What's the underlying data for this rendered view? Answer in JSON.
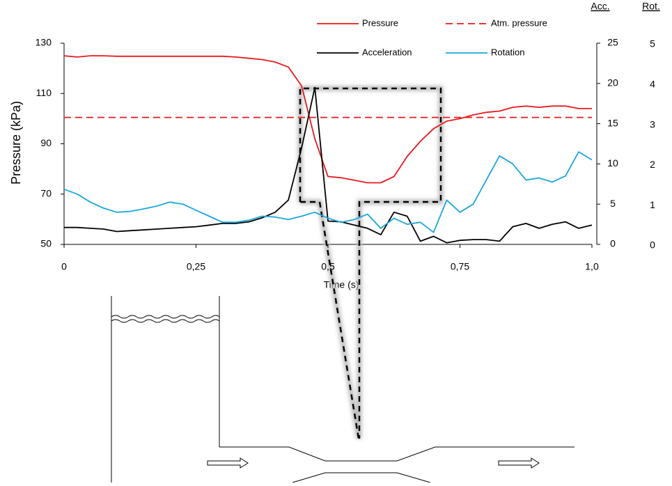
{
  "chart_data": {
    "type": "line",
    "x_label": "Time (s)",
    "y_label": "Pressure (kPa)",
    "y2_label": "Acc.",
    "y3_label": "Rot.",
    "x": [
      0,
      0.025,
      0.05,
      0.075,
      0.1,
      0.125,
      0.15,
      0.175,
      0.2,
      0.225,
      0.25,
      0.275,
      0.3,
      0.325,
      0.35,
      0.375,
      0.4,
      0.425,
      0.45,
      0.475,
      0.5,
      0.525,
      0.55,
      0.575,
      0.6,
      0.625,
      0.65,
      0.675,
      0.7,
      0.725,
      0.75,
      0.775,
      0.8,
      0.825,
      0.85,
      0.875,
      0.9,
      0.925,
      0.95,
      0.975,
      1.0
    ],
    "xlim": [
      0,
      1.0
    ],
    "xticks": [
      0,
      {
        "value": 0.25,
        "label": "0,25"
      },
      {
        "value": 0.5,
        "label": "0,5"
      },
      {
        "value": 0.75,
        "label": "0,75"
      },
      {
        "value": 1.0,
        "label": "1,0"
      }
    ],
    "ylim": [
      50,
      130
    ],
    "yticks": [
      50,
      70,
      90,
      110,
      130
    ],
    "y2lim": [
      0,
      25
    ],
    "y2ticks": [
      0,
      5,
      10,
      15,
      20,
      25
    ],
    "y3lim": [
      0,
      5
    ],
    "y3ticks": [
      0,
      1,
      2,
      3,
      4,
      5
    ],
    "series": [
      {
        "name": "Pressure",
        "color": "#e8191c",
        "values": [
          125,
          124.5,
          125,
          125,
          124.8,
          124.8,
          124.8,
          124.8,
          124.8,
          124.8,
          124.8,
          124.8,
          124.8,
          124.5,
          124,
          123.5,
          122.5,
          120.5,
          113,
          92,
          77,
          76.5,
          75.5,
          74.5,
          74.5,
          77,
          85,
          91,
          96,
          99,
          100,
          101.5,
          102.5,
          103,
          104.5,
          105,
          104.5,
          105,
          105,
          104,
          104
        ]
      },
      {
        "name": "Atm. pressure",
        "color": "#e8191c",
        "dashed": true,
        "values": [
          100.5,
          100.5,
          100.5,
          100.5,
          100.5,
          100.5,
          100.5,
          100.5,
          100.5,
          100.5,
          100.5,
          100.5,
          100.5,
          100.5,
          100.5,
          100.5,
          100.5,
          100.5,
          100.5,
          100.5,
          100.5,
          100.5,
          100.5,
          100.5,
          100.5,
          100.5,
          100.5,
          100.5,
          100.5,
          100.5,
          100.5,
          100.5,
          100.5,
          100.5,
          100.5,
          100.5,
          100.5,
          100.5,
          100.5,
          100.5,
          100.5
        ]
      },
      {
        "name": "Acceleration",
        "color": "#000000",
        "axis": "y2",
        "values": [
          2.1,
          2.1,
          2.0,
          1.9,
          1.6,
          1.7,
          1.8,
          1.9,
          2.0,
          2.1,
          2.2,
          2.4,
          2.6,
          2.6,
          2.8,
          3.3,
          4.0,
          5.5,
          12,
          19.5,
          2.9,
          2.8,
          2.4,
          2.0,
          1.2,
          4.0,
          3.5,
          0.4,
          1.0,
          0.2,
          0.5,
          0.6,
          0.6,
          0.4,
          2.2,
          2.6,
          2.0,
          2.5,
          2.8,
          2.0,
          2.4
        ]
      },
      {
        "name": "Rotation",
        "color": "#1aa6dd",
        "axis": "y3",
        "values": [
          1.37,
          1.25,
          1.05,
          0.9,
          0.8,
          0.82,
          0.88,
          0.95,
          1.05,
          1.0,
          0.85,
          0.7,
          0.55,
          0.55,
          0.6,
          0.7,
          0.68,
          0.62,
          0.7,
          0.8,
          0.65,
          0.55,
          0.62,
          0.75,
          0.4,
          0.65,
          0.5,
          0.55,
          0.3,
          1.1,
          0.8,
          1.0,
          1.6,
          2.2,
          2.0,
          1.6,
          1.65,
          1.55,
          1.7,
          2.3,
          2.1
        ]
      }
    ]
  }
}
